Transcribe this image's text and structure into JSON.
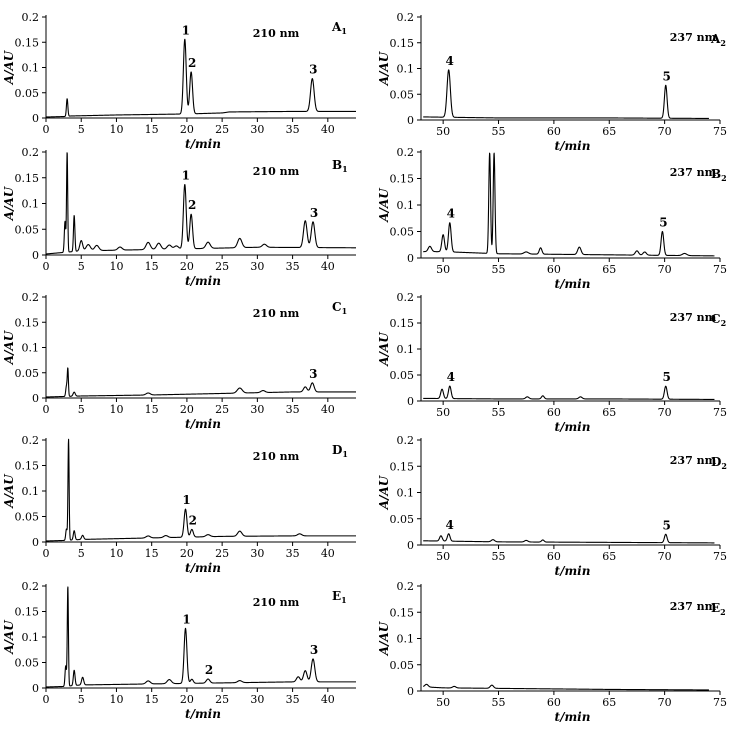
{
  "chart_data": [
    {
      "type": "line",
      "label": "A",
      "label_sub": "1",
      "wavelength": "210 nm",
      "xlim": [
        0,
        44
      ],
      "ylim": [
        0,
        0.2
      ],
      "xticks": [
        0,
        5,
        10,
        15,
        20,
        25,
        30,
        35,
        40
      ],
      "yticks": [
        0,
        0.05,
        0.1,
        0.15,
        0.2
      ],
      "xlabel": "t/min",
      "ylabel": "A/AU",
      "baseline": [
        [
          0,
          0.002
        ],
        [
          2.8,
          0.003
        ],
        [
          3.5,
          0.004
        ],
        [
          10,
          0.006
        ],
        [
          20,
          0.008
        ],
        [
          25,
          0.01
        ],
        [
          26,
          0.012
        ],
        [
          35,
          0.013
        ],
        [
          44,
          0.013
        ]
      ],
      "peaks": [
        {
          "x": 3.0,
          "y": 0.035,
          "w": 0.1
        },
        {
          "x": 19.7,
          "y": 0.148,
          "w": 0.2,
          "label": "1"
        },
        {
          "x": 20.6,
          "y": 0.083,
          "w": 0.2,
          "label": "2"
        },
        {
          "x": 37.8,
          "y": 0.065,
          "w": 0.25,
          "label": "3"
        }
      ]
    },
    {
      "type": "line",
      "label": "A",
      "label_sub": "2",
      "wavelength": "237 nm",
      "xlim": [
        48,
        75
      ],
      "ylim": [
        0,
        0.2
      ],
      "xticks": [
        50,
        55,
        60,
        65,
        70,
        75
      ],
      "yticks": [
        0,
        0.05,
        0.1,
        0.15,
        0.2
      ],
      "xlabel": "t/min",
      "ylabel": "A/AU",
      "baseline": [
        [
          48.2,
          0.006
        ],
        [
          55,
          0.004
        ],
        [
          65,
          0.004
        ],
        [
          74,
          0.003
        ]
      ],
      "peaks": [
        {
          "x": 50.5,
          "y": 0.092,
          "w": 0.15,
          "label": "4"
        },
        {
          "x": 70.1,
          "y": 0.064,
          "w": 0.12,
          "label": "5"
        }
      ]
    },
    {
      "type": "line",
      "label": "B",
      "label_sub": "1",
      "wavelength": "210 nm",
      "xlim": [
        0,
        44
      ],
      "ylim": [
        0,
        0.2
      ],
      "xticks": [
        0,
        5,
        10,
        15,
        20,
        25,
        30,
        35,
        40
      ],
      "yticks": [
        0,
        0.05,
        0.1,
        0.15,
        0.2
      ],
      "xlabel": "t/min",
      "ylabel": "A/AU",
      "baseline": [
        [
          0,
          0.002
        ],
        [
          2.5,
          0.005
        ],
        [
          5,
          0.008
        ],
        [
          20,
          0.012
        ],
        [
          30,
          0.015
        ],
        [
          44,
          0.014
        ]
      ],
      "peaks": [
        {
          "x": 2.7,
          "y": 0.06,
          "w": 0.1
        },
        {
          "x": 3.0,
          "y": 0.195,
          "w": 0.08
        },
        {
          "x": 4.0,
          "y": 0.07,
          "w": 0.1
        },
        {
          "x": 5.0,
          "y": 0.02,
          "w": 0.2
        },
        {
          "x": 6.0,
          "y": 0.012,
          "w": 0.3
        },
        {
          "x": 7.2,
          "y": 0.01,
          "w": 0.3
        },
        {
          "x": 10.5,
          "y": 0.006,
          "w": 0.3
        },
        {
          "x": 14.5,
          "y": 0.014,
          "w": 0.3
        },
        {
          "x": 16.0,
          "y": 0.012,
          "w": 0.3
        },
        {
          "x": 17.5,
          "y": 0.008,
          "w": 0.3
        },
        {
          "x": 18.5,
          "y": 0.006,
          "w": 0.3
        },
        {
          "x": 19.7,
          "y": 0.125,
          "w": 0.2,
          "label": "1"
        },
        {
          "x": 20.6,
          "y": 0.067,
          "w": 0.2,
          "label": "2"
        },
        {
          "x": 23.0,
          "y": 0.012,
          "w": 0.3
        },
        {
          "x": 27.5,
          "y": 0.018,
          "w": 0.3
        },
        {
          "x": 31.0,
          "y": 0.006,
          "w": 0.3
        },
        {
          "x": 36.8,
          "y": 0.052,
          "w": 0.25
        },
        {
          "x": 37.9,
          "y": 0.05,
          "w": 0.25,
          "label": "3"
        }
      ]
    },
    {
      "type": "line",
      "label": "B",
      "label_sub": "2",
      "wavelength": "237 nm",
      "xlim": [
        48,
        75
      ],
      "ylim": [
        0,
        0.2
      ],
      "xticks": [
        50,
        55,
        60,
        65,
        70,
        75
      ],
      "yticks": [
        0,
        0.05,
        0.1,
        0.15,
        0.2
      ],
      "xlabel": "t/min",
      "ylabel": "A/AU",
      "baseline": [
        [
          48.2,
          0.012
        ],
        [
          50,
          0.012
        ],
        [
          55,
          0.008
        ],
        [
          65,
          0.006
        ],
        [
          74.5,
          0.004
        ]
      ],
      "peaks": [
        {
          "x": 48.8,
          "y": 0.01,
          "w": 0.15
        },
        {
          "x": 50.0,
          "y": 0.032,
          "w": 0.12
        },
        {
          "x": 50.6,
          "y": 0.055,
          "w": 0.12,
          "label": "4"
        },
        {
          "x": 54.2,
          "y": 0.19,
          "w": 0.08
        },
        {
          "x": 54.6,
          "y": 0.19,
          "w": 0.08
        },
        {
          "x": 57.5,
          "y": 0.004,
          "w": 0.2
        },
        {
          "x": 58.8,
          "y": 0.012,
          "w": 0.12
        },
        {
          "x": 62.3,
          "y": 0.014,
          "w": 0.15
        },
        {
          "x": 67.5,
          "y": 0.008,
          "w": 0.15
        },
        {
          "x": 68.2,
          "y": 0.006,
          "w": 0.15
        },
        {
          "x": 69.8,
          "y": 0.045,
          "w": 0.12,
          "label": "5"
        },
        {
          "x": 71.8,
          "y": 0.004,
          "w": 0.2
        }
      ]
    },
    {
      "type": "line",
      "label": "C",
      "label_sub": "1",
      "wavelength": "210 nm",
      "xlim": [
        0,
        44
      ],
      "ylim": [
        0,
        0.2
      ],
      "xticks": [
        0,
        5,
        10,
        15,
        20,
        25,
        30,
        35,
        40
      ],
      "yticks": [
        0,
        0.05,
        0.1,
        0.15,
        0.2
      ],
      "xlabel": "t/min",
      "ylabel": "A/AU",
      "baseline": [
        [
          0,
          0.002
        ],
        [
          2.5,
          0.003
        ],
        [
          5,
          0.004
        ],
        [
          15,
          0.006
        ],
        [
          25,
          0.009
        ],
        [
          35,
          0.012
        ],
        [
          44,
          0.012
        ]
      ],
      "peaks": [
        {
          "x": 2.9,
          "y": 0.02,
          "w": 0.1
        },
        {
          "x": 3.1,
          "y": 0.054,
          "w": 0.08
        },
        {
          "x": 4.0,
          "y": 0.008,
          "w": 0.15
        },
        {
          "x": 14.5,
          "y": 0.004,
          "w": 0.3
        },
        {
          "x": 27.5,
          "y": 0.01,
          "w": 0.35
        },
        {
          "x": 30.8,
          "y": 0.004,
          "w": 0.3
        },
        {
          "x": 36.8,
          "y": 0.01,
          "w": 0.25
        },
        {
          "x": 37.8,
          "y": 0.018,
          "w": 0.25,
          "label": "3"
        }
      ]
    },
    {
      "type": "line",
      "label": "C",
      "label_sub": "2",
      "wavelength": "237 nm",
      "xlim": [
        48,
        75
      ],
      "ylim": [
        0,
        0.2
      ],
      "xticks": [
        50,
        55,
        60,
        65,
        70,
        75
      ],
      "yticks": [
        0,
        0.05,
        0.1,
        0.15,
        0.2
      ],
      "xlabel": "t/min",
      "ylabel": "A/AU",
      "baseline": [
        [
          48.2,
          0.005
        ],
        [
          55,
          0.004
        ],
        [
          65,
          0.004
        ],
        [
          74.5,
          0.003
        ]
      ],
      "peaks": [
        {
          "x": 49.9,
          "y": 0.018,
          "w": 0.12
        },
        {
          "x": 50.6,
          "y": 0.024,
          "w": 0.12,
          "label": "4"
        },
        {
          "x": 57.6,
          "y": 0.004,
          "w": 0.15
        },
        {
          "x": 59.0,
          "y": 0.006,
          "w": 0.12
        },
        {
          "x": 62.4,
          "y": 0.004,
          "w": 0.15
        },
        {
          "x": 70.1,
          "y": 0.025,
          "w": 0.12,
          "label": "5"
        }
      ]
    },
    {
      "type": "line",
      "label": "D",
      "label_sub": "1",
      "wavelength": "210 nm",
      "xlim": [
        0,
        44
      ],
      "ylim": [
        0,
        0.2
      ],
      "xticks": [
        0,
        5,
        10,
        15,
        20,
        25,
        30,
        35,
        40
      ],
      "yticks": [
        0,
        0.05,
        0.1,
        0.15,
        0.2
      ],
      "xlabel": "t/min",
      "ylabel": "A/AU",
      "baseline": [
        [
          0,
          0.002
        ],
        [
          2.5,
          0.003
        ],
        [
          5,
          0.005
        ],
        [
          15,
          0.008
        ],
        [
          25,
          0.011
        ],
        [
          35,
          0.012
        ],
        [
          44,
          0.012
        ]
      ],
      "peaks": [
        {
          "x": 2.9,
          "y": 0.022,
          "w": 0.1
        },
        {
          "x": 3.2,
          "y": 0.198,
          "w": 0.08
        },
        {
          "x": 4.0,
          "y": 0.018,
          "w": 0.12
        },
        {
          "x": 5.2,
          "y": 0.008,
          "w": 0.15
        },
        {
          "x": 14.5,
          "y": 0.004,
          "w": 0.3
        },
        {
          "x": 17.0,
          "y": 0.004,
          "w": 0.3
        },
        {
          "x": 19.8,
          "y": 0.055,
          "w": 0.2,
          "label": "1"
        },
        {
          "x": 20.7,
          "y": 0.015,
          "w": 0.2,
          "label": "2"
        },
        {
          "x": 23.0,
          "y": 0.004,
          "w": 0.3
        },
        {
          "x": 27.5,
          "y": 0.01,
          "w": 0.3
        },
        {
          "x": 36.0,
          "y": 0.004,
          "w": 0.3
        }
      ]
    },
    {
      "type": "line",
      "label": "D",
      "label_sub": "2",
      "wavelength": "237 nm",
      "xlim": [
        48,
        75
      ],
      "ylim": [
        0,
        0.2
      ],
      "xticks": [
        50,
        55,
        60,
        65,
        70,
        75
      ],
      "yticks": [
        0,
        0.05,
        0.1,
        0.15,
        0.2
      ],
      "xlabel": "t/min",
      "ylabel": "A/AU",
      "baseline": [
        [
          48.2,
          0.008
        ],
        [
          55,
          0.006
        ],
        [
          65,
          0.005
        ],
        [
          74.5,
          0.004
        ]
      ],
      "peaks": [
        {
          "x": 49.8,
          "y": 0.01,
          "w": 0.12
        },
        {
          "x": 50.5,
          "y": 0.014,
          "w": 0.12,
          "label": "4"
        },
        {
          "x": 54.5,
          "y": 0.004,
          "w": 0.15
        },
        {
          "x": 57.5,
          "y": 0.003,
          "w": 0.15
        },
        {
          "x": 59.0,
          "y": 0.004,
          "w": 0.12
        },
        {
          "x": 70.1,
          "y": 0.016,
          "w": 0.12,
          "label": "5"
        }
      ]
    },
    {
      "type": "line",
      "label": "E",
      "label_sub": "1",
      "wavelength": "210 nm",
      "xlim": [
        0,
        44
      ],
      "ylim": [
        0,
        0.2
      ],
      "xticks": [
        0,
        5,
        10,
        15,
        20,
        25,
        30,
        35,
        40
      ],
      "yticks": [
        0,
        0.05,
        0.1,
        0.15,
        0.2
      ],
      "xlabel": "t/min",
      "ylabel": "A/AU",
      "baseline": [
        [
          0,
          0.002
        ],
        [
          2.5,
          0.003
        ],
        [
          5,
          0.006
        ],
        [
          15,
          0.008
        ],
        [
          25,
          0.01
        ],
        [
          35,
          0.012
        ],
        [
          44,
          0.012
        ]
      ],
      "peaks": [
        {
          "x": 2.8,
          "y": 0.04,
          "w": 0.1
        },
        {
          "x": 3.1,
          "y": 0.196,
          "w": 0.08
        },
        {
          "x": 4.0,
          "y": 0.03,
          "w": 0.12
        },
        {
          "x": 5.2,
          "y": 0.015,
          "w": 0.15
        },
        {
          "x": 14.5,
          "y": 0.006,
          "w": 0.3
        },
        {
          "x": 17.5,
          "y": 0.008,
          "w": 0.3
        },
        {
          "x": 19.8,
          "y": 0.108,
          "w": 0.2,
          "label": "1"
        },
        {
          "x": 20.7,
          "y": 0.008,
          "w": 0.2
        },
        {
          "x": 23.0,
          "y": 0.008,
          "w": 0.25,
          "label": "2"
        },
        {
          "x": 27.5,
          "y": 0.004,
          "w": 0.3
        },
        {
          "x": 35.8,
          "y": 0.01,
          "w": 0.25
        },
        {
          "x": 36.8,
          "y": 0.022,
          "w": 0.25
        },
        {
          "x": 37.9,
          "y": 0.045,
          "w": 0.25,
          "label": "3"
        }
      ]
    },
    {
      "type": "line",
      "label": "E",
      "label_sub": "2",
      "wavelength": "237 nm",
      "xlim": [
        48,
        75
      ],
      "ylim": [
        0,
        0.2
      ],
      "xticks": [
        50,
        55,
        60,
        65,
        70,
        75
      ],
      "yticks": [
        0,
        0.05,
        0.1,
        0.15,
        0.2
      ],
      "xlabel": "t/min",
      "ylabel": "A/AU",
      "baseline": [
        [
          48.2,
          0.008
        ],
        [
          50,
          0.006
        ],
        [
          55,
          0.005
        ],
        [
          65,
          0.003
        ],
        [
          74,
          0.002
        ]
      ],
      "peaks": [
        {
          "x": 48.5,
          "y": 0.005,
          "w": 0.15
        },
        {
          "x": 51.0,
          "y": 0.003,
          "w": 0.15
        },
        {
          "x": 54.4,
          "y": 0.006,
          "w": 0.15
        }
      ]
    }
  ]
}
